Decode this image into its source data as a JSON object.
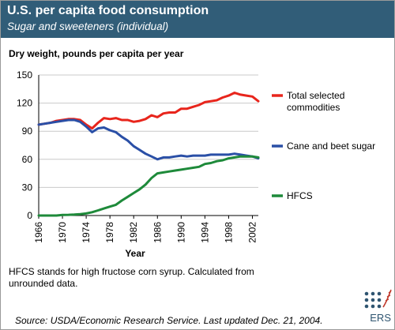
{
  "header": {
    "title": "U.S. per capita food consumption",
    "subtitle": "Sugar and sweeteners (individual)"
  },
  "note": "HFCS stands for high fructose corn syrup. Calculated from unrounded data.",
  "source": "Source: USDA/Economic Research Service. Last updated Dec. 21, 2004.",
  "logo": {
    "text": "ERS",
    "color": "#2e5470",
    "icon": "ers-dot-grid-and-wheat-logo"
  },
  "colors": {
    "header_bg": "#315d78",
    "total": "#e8251c",
    "cane": "#2a4fa6",
    "hfcs": "#1e8a3a"
  },
  "chart_data": {
    "type": "line",
    "ylabel": "Dry weight, pounds per capita per year",
    "xlabel": "Year",
    "ylim": [
      0,
      150
    ],
    "yticks": [
      0,
      30,
      60,
      90,
      120,
      150
    ],
    "xlim": [
      1966,
      2003
    ],
    "xticks": [
      1966,
      1970,
      1974,
      1978,
      1982,
      1986,
      1990,
      1994,
      1998,
      2002
    ],
    "grid": "horizontal",
    "legend_position": "right",
    "x": [
      1966,
      1967,
      1968,
      1969,
      1970,
      1971,
      1972,
      1973,
      1974,
      1975,
      1976,
      1977,
      1978,
      1979,
      1980,
      1981,
      1982,
      1983,
      1984,
      1985,
      1986,
      1987,
      1988,
      1989,
      1990,
      1991,
      1992,
      1993,
      1994,
      1995,
      1996,
      1997,
      1998,
      1999,
      2000,
      2001,
      2002,
      2003
    ],
    "series": [
      {
        "name": "Total selected commodities",
        "color": "#e8251c",
        "values": [
          97,
          98,
          99,
          101,
          102,
          103,
          103,
          102,
          97,
          93,
          99,
          104,
          103,
          104,
          102,
          102,
          100,
          101,
          103,
          107,
          105,
          109,
          110,
          110,
          114,
          114,
          116,
          118,
          121,
          122,
          123,
          126,
          128,
          131,
          129,
          128,
          127,
          122
        ]
      },
      {
        "name": "Cane and beet sugar",
        "color": "#2a4fa6",
        "values": [
          97,
          98,
          99,
          100,
          101,
          102,
          102,
          100,
          95,
          89,
          93,
          94,
          91,
          89,
          84,
          80,
          74,
          70,
          66,
          63,
          60,
          62,
          62,
          63,
          64,
          63,
          64,
          64,
          64,
          65,
          65,
          65,
          65,
          66,
          65,
          64,
          63,
          61
        ]
      },
      {
        "name": "HFCS",
        "color": "#1e8a3a",
        "values": [
          0,
          0,
          0,
          0,
          0.7,
          0.8,
          1.0,
          1.5,
          2.2,
          3.5,
          5.5,
          7.5,
          9.5,
          11.5,
          16,
          20,
          24,
          28,
          33,
          40,
          45,
          46,
          47,
          48,
          49,
          50,
          51,
          52,
          55,
          56,
          58,
          59,
          61,
          62,
          63,
          63,
          63,
          62
        ]
      }
    ]
  }
}
